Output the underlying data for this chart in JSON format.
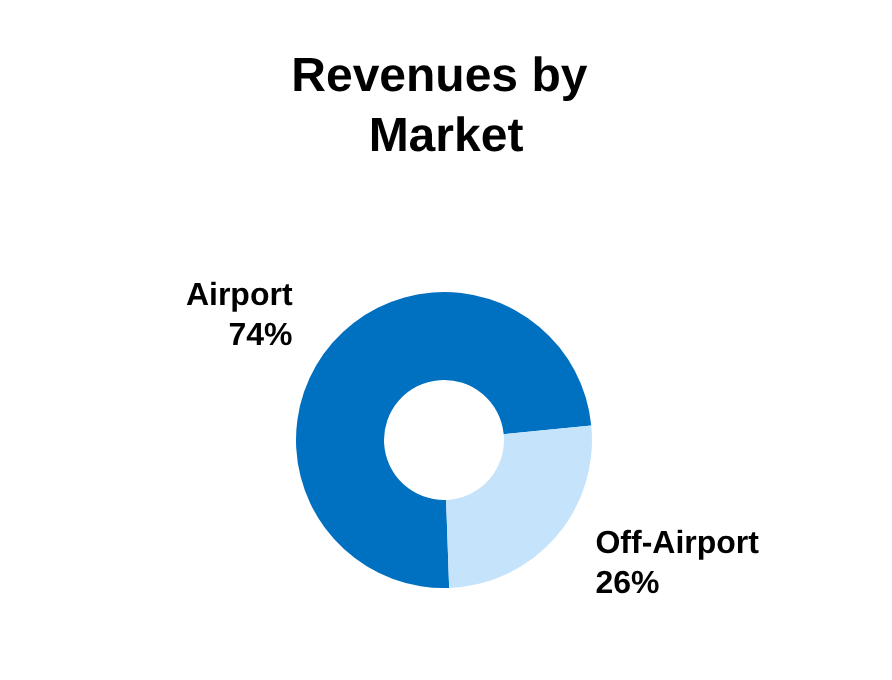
{
  "chart_data": {
    "type": "donut",
    "title": "Revenues by Market",
    "categories": [
      "Airport",
      "Off-Airport"
    ],
    "values": [
      74,
      26
    ],
    "colors": [
      "#0070c0",
      "#c5e3fb"
    ],
    "value_labels": [
      "74%",
      "26%"
    ],
    "legend": false
  }
}
